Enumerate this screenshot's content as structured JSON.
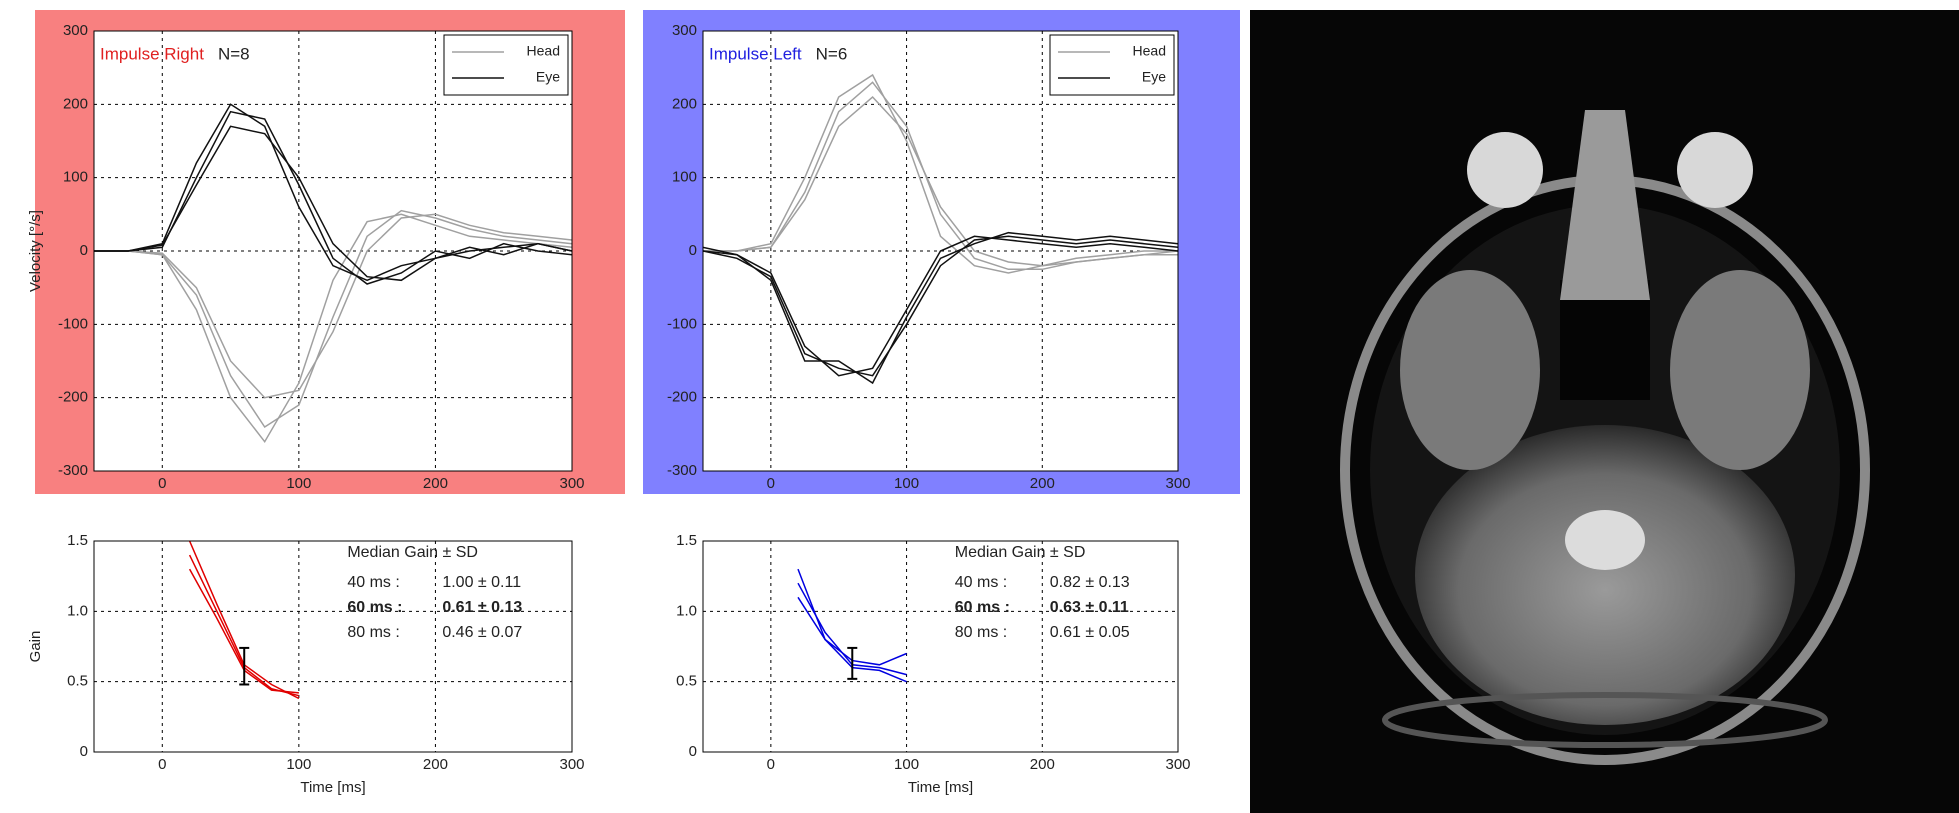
{
  "chart_data": [
    {
      "type": "line",
      "title": "Impulse Right",
      "subtitle": "N=8",
      "title_color": "#e02020",
      "panel_color": "#f88080",
      "ylabel": "Velocity [°/s]",
      "xlim": [
        -50,
        300
      ],
      "xticks": [
        0,
        100,
        200,
        300
      ],
      "ylim": [
        -300,
        300
      ],
      "yticks": [
        -300,
        -200,
        -100,
        0,
        100,
        200,
        300
      ],
      "grid": true,
      "legend": "upper right",
      "x": [
        -50,
        -25,
        0,
        25,
        50,
        75,
        100,
        125,
        150,
        175,
        200,
        225,
        250,
        275,
        300
      ],
      "series": [
        {
          "name": "Head",
          "color": "#a0a0a0",
          "traces": [
            [
              0,
              0,
              -5,
              -80,
              -200,
              -260,
              -180,
              -40,
              40,
              50,
              35,
              20,
              15,
              10,
              5
            ],
            [
              0,
              0,
              -5,
              -60,
              -170,
              -240,
              -210,
              -90,
              20,
              55,
              45,
              30,
              20,
              15,
              10
            ],
            [
              0,
              0,
              -3,
              -50,
              -150,
              -200,
              -190,
              -110,
              0,
              45,
              50,
              35,
              25,
              20,
              15
            ]
          ]
        },
        {
          "name": "Eye",
          "color": "#111111",
          "traces": [
            [
              0,
              0,
              10,
              120,
              200,
              170,
              60,
              -20,
              -40,
              -20,
              -10,
              0,
              5,
              10,
              0
            ],
            [
              0,
              0,
              5,
              100,
              190,
              180,
              90,
              -10,
              -45,
              -30,
              0,
              -10,
              10,
              0,
              -5
            ],
            [
              0,
              0,
              8,
              90,
              170,
              160,
              100,
              10,
              -35,
              -40,
              -10,
              5,
              -5,
              10,
              0
            ]
          ]
        }
      ]
    },
    {
      "type": "line",
      "title": "Impulse Left",
      "subtitle": "N=6",
      "title_color": "#2020e0",
      "panel_color": "#8080ff",
      "xlim": [
        -50,
        300
      ],
      "xticks": [
        0,
        100,
        200,
        300
      ],
      "ylim": [
        -300,
        300
      ],
      "yticks": [
        -300,
        -200,
        -100,
        0,
        100,
        200,
        300
      ],
      "grid": true,
      "legend": "upper right",
      "x": [
        -50,
        -25,
        0,
        25,
        50,
        75,
        100,
        125,
        150,
        175,
        200,
        225,
        250,
        275,
        300
      ],
      "series": [
        {
          "name": "Head",
          "color": "#a0a0a0",
          "traces": [
            [
              0,
              0,
              10,
              100,
              210,
              240,
              150,
              20,
              -20,
              -30,
              -20,
              -10,
              -5,
              0,
              0
            ],
            [
              0,
              0,
              5,
              80,
              190,
              230,
              170,
              50,
              -10,
              -25,
              -25,
              -15,
              -10,
              -5,
              0
            ],
            [
              0,
              0,
              5,
              70,
              170,
              210,
              160,
              60,
              0,
              -15,
              -20,
              -15,
              -10,
              -5,
              -5
            ]
          ]
        },
        {
          "name": "Eye",
          "color": "#111111",
          "traces": [
            [
              0,
              -5,
              -30,
              -130,
              -170,
              -160,
              -80,
              0,
              20,
              15,
              10,
              5,
              10,
              5,
              0
            ],
            [
              5,
              -5,
              -40,
              -150,
              -150,
              -180,
              -90,
              -10,
              10,
              25,
              20,
              15,
              20,
              15,
              10
            ],
            [
              0,
              -10,
              -35,
              -140,
              -160,
              -170,
              -100,
              -20,
              15,
              20,
              15,
              10,
              15,
              10,
              5
            ]
          ]
        }
      ]
    },
    {
      "type": "line",
      "ylabel": "Gain",
      "xlabel": "Time [ms]",
      "xlim": [
        -50,
        300
      ],
      "xticks": [
        0,
        100,
        200,
        300
      ],
      "ylim": [
        0,
        1.5
      ],
      "yticks": [
        0,
        0.5,
        {
          "value": 1,
          "label": "1.0"
        },
        1.5
      ],
      "grid": true,
      "x": [
        20,
        40,
        60,
        80,
        100
      ],
      "series": [
        {
          "color": "#e00000",
          "traces": [
            [
              1.4,
              1.0,
              0.6,
              0.45,
              0.4
            ],
            [
              1.5,
              1.05,
              0.62,
              0.48,
              0.38
            ],
            [
              1.3,
              0.95,
              0.58,
              0.44,
              0.42
            ]
          ]
        }
      ],
      "error_bar": {
        "x": 60,
        "value": 0.61,
        "error": 0.13
      },
      "table_title": "Median Gain ± SD",
      "table": [
        [
          "40 ms :",
          "1.00 ± 0.11"
        ],
        [
          "60 ms :",
          "0.61 ± 0.13"
        ],
        [
          "80 ms :",
          "0.46 ± 0.07"
        ]
      ]
    },
    {
      "type": "line",
      "xlabel": "Time [ms]",
      "xlim": [
        -50,
        300
      ],
      "xticks": [
        0,
        100,
        200,
        300
      ],
      "ylim": [
        0,
        1.5
      ],
      "yticks": [
        0,
        0.5,
        {
          "value": 1,
          "label": "1.0"
        },
        1.5
      ],
      "grid": true,
      "x": [
        20,
        40,
        60,
        80,
        100
      ],
      "series": [
        {
          "color": "#0000e0",
          "traces": [
            [
              1.2,
              0.85,
              0.62,
              0.6,
              0.55
            ],
            [
              1.3,
              0.8,
              0.65,
              0.62,
              0.7
            ],
            [
              1.1,
              0.8,
              0.6,
              0.58,
              0.5
            ]
          ]
        }
      ],
      "error_bar": {
        "x": 60,
        "value": 0.63,
        "error": 0.11
      },
      "table_title": "Median Gain ± SD",
      "table": [
        [
          "40 ms :",
          "0.82 ± 0.13"
        ],
        [
          "60 ms :",
          "0.63 ± 0.11"
        ],
        [
          "80 ms :",
          "0.61 ± 0.05"
        ]
      ]
    }
  ]
}
